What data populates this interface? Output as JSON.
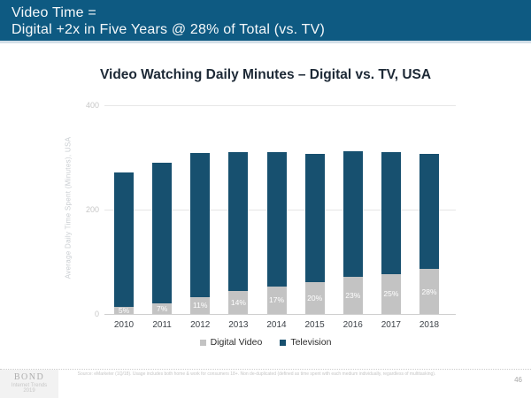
{
  "header": {
    "line1": "Video Time =",
    "line2": "Digital +2x in Five Years @ 28% of Total (vs. TV)"
  },
  "chart_data": {
    "type": "bar",
    "stacked": true,
    "title": "Video Watching Daily Minutes – Digital vs. TV, USA",
    "ylabel": "Average Daily Time Spent (Minutes), USA",
    "xlabel": "",
    "categories": [
      "2010",
      "2011",
      "2012",
      "2013",
      "2014",
      "2015",
      "2016",
      "2017",
      "2018"
    ],
    "series": [
      {
        "name": "Digital Video",
        "color": "#c3c3c3",
        "values": [
          14,
          21,
          33,
          44,
          53,
          61,
          72,
          77,
          86
        ],
        "labels": [
          "5%",
          "7%",
          "11%",
          "14%",
          "17%",
          "20%",
          "23%",
          "25%",
          "28%"
        ]
      },
      {
        "name": "Television",
        "color": "#17506f",
        "values": [
          258,
          268,
          275,
          267,
          257,
          246,
          240,
          233,
          221
        ],
        "labels": []
      }
    ],
    "totals": [
      272,
      289,
      308,
      311,
      310,
      307,
      312,
      310,
      307
    ],
    "ylim": [
      0,
      400
    ],
    "yticks": [
      0,
      200,
      400
    ],
    "grid": true,
    "legend_position": "bottom"
  },
  "footer": {
    "logo": {
      "line1": "BOND",
      "line2": "Internet Trends",
      "line3": "2019"
    },
    "source": "Source: eMarketer (1Q/18). Usage includes both home & work for consumers 18+. Non de-duplicated (defined as time spent with each medium individually, regardless of multitasking).",
    "page_number": "46"
  },
  "colors": {
    "header_bg": "#0e5a82",
    "television": "#17506f",
    "digital_video": "#c3c3c3",
    "title_text": "#1d2936"
  }
}
